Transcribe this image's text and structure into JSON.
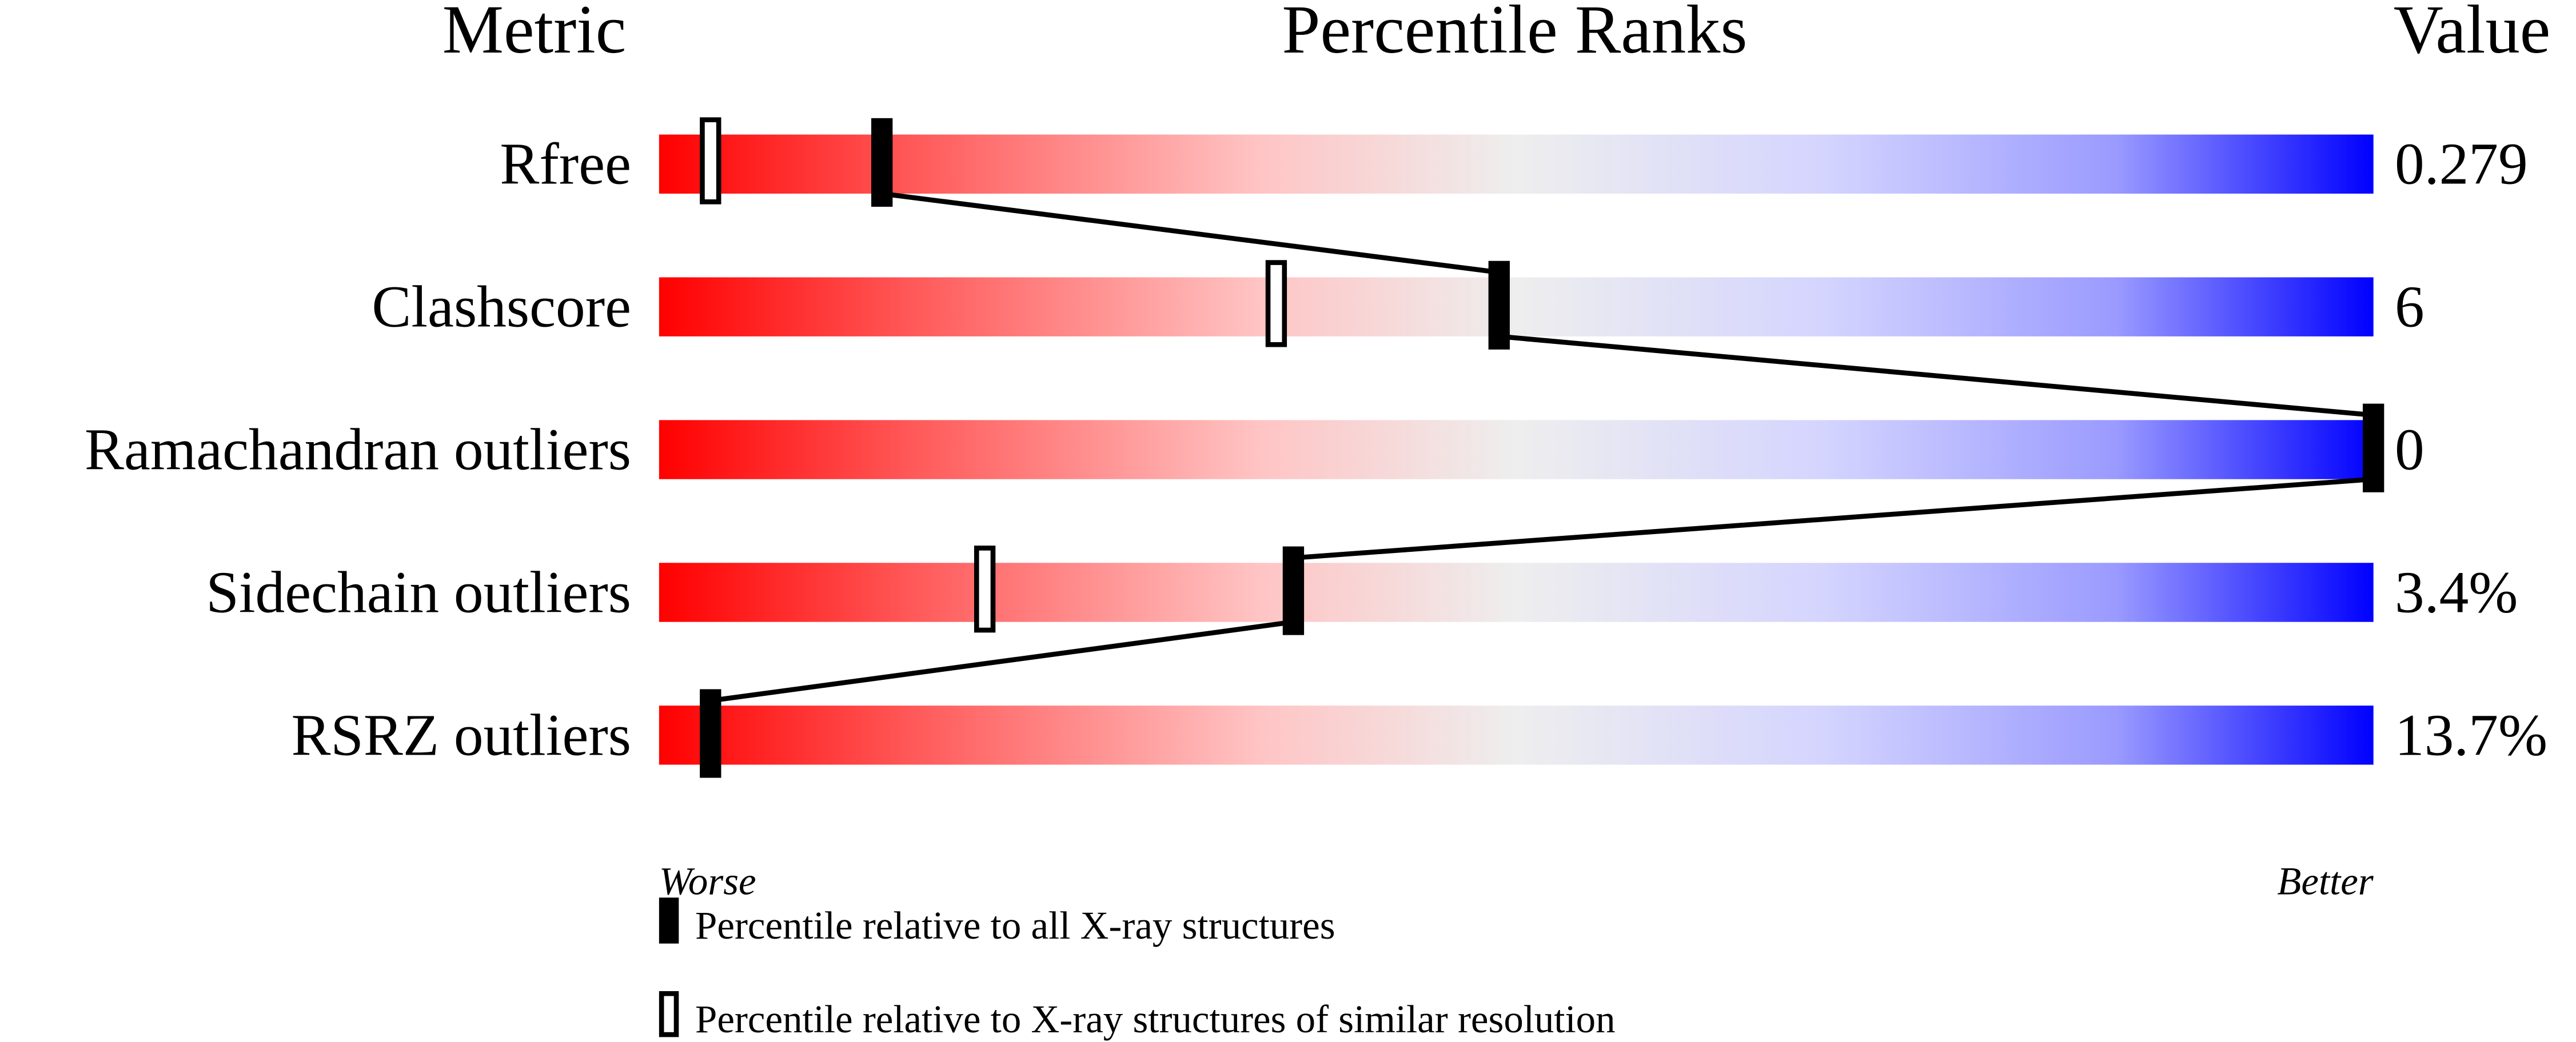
{
  "chart_data": {
    "type": "percentile-slider",
    "headers": {
      "metric": "Metric",
      "ranks": "Percentile Ranks",
      "value": "Value"
    },
    "xlim": [
      0,
      100
    ],
    "metrics": [
      {
        "name": "Rfree",
        "value": "0.279",
        "percentile_all": 13,
        "percentile_similar": 3
      },
      {
        "name": "Clashscore",
        "value": "6",
        "percentile_all": 49,
        "percentile_similar": 36
      },
      {
        "name": "Ramachandran outliers",
        "value": "0",
        "percentile_all": 100,
        "percentile_similar": null
      },
      {
        "name": "Sidechain outliers",
        "value": "3.4%",
        "percentile_all": 37,
        "percentile_similar": 19
      },
      {
        "name": "RSRZ outliers",
        "value": "13.7%",
        "percentile_all": 3,
        "percentile_similar": null
      }
    ],
    "axis_labels": {
      "left": "Worse",
      "right": "Better"
    },
    "legend": [
      {
        "marker": "filled",
        "label": "Percentile relative to all X-ray structures"
      },
      {
        "marker": "hollow",
        "label": "Percentile relative to X-ray structures of similar resolution"
      }
    ],
    "colors": {
      "worse": "#ff0000",
      "middle": "#eeeeee",
      "better": "#0000ff",
      "marker": "#000000"
    }
  }
}
